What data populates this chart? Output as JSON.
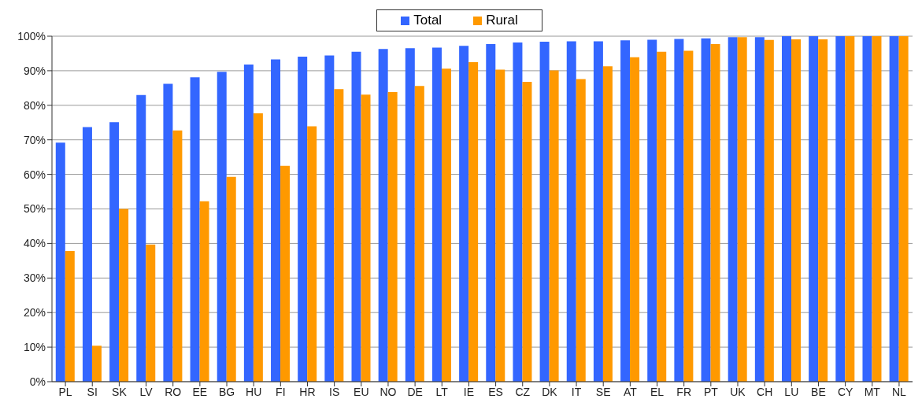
{
  "chart_data": {
    "type": "bar",
    "categories": [
      "PL",
      "SI",
      "SK",
      "LV",
      "RO",
      "EE",
      "BG",
      "HU",
      "FI",
      "HR",
      "IS",
      "EU",
      "NO",
      "DE",
      "LT",
      "IE",
      "ES",
      "CZ",
      "DK",
      "IT",
      "SE",
      "AT",
      "EL",
      "FR",
      "PT",
      "UK",
      "CH",
      "LU",
      "BE",
      "CY",
      "MT",
      "NL"
    ],
    "series": [
      {
        "name": "Total",
        "color": "#3366ff",
        "values": [
          69.2,
          73.7,
          75.1,
          83,
          86.2,
          88.1,
          89.7,
          91.8,
          93.3,
          94.1,
          94.4,
          95.5,
          96.3,
          96.5,
          96.7,
          97.2,
          97.7,
          98.2,
          98.4,
          98.5,
          98.5,
          98.8,
          99.0,
          99.2,
          99.4,
          99.7,
          99.7,
          100,
          100,
          100,
          100,
          100
        ]
      },
      {
        "name": "Rural",
        "color": "#ff9900",
        "values": [
          37.8,
          10.4,
          50,
          39.7,
          72.7,
          52.2,
          59.3,
          77.7,
          62.5,
          73.9,
          84.7,
          83.1,
          83.8,
          85.6,
          90.6,
          92.5,
          90.3,
          86.8,
          90.1,
          87.6,
          91.3,
          93.9,
          95.5,
          95.8,
          97.7,
          99.7,
          98.9,
          99.1,
          99.1,
          100,
          100,
          100
        ]
      }
    ],
    "ylim": [
      0,
      100
    ],
    "yticks": [
      {
        "value": 0,
        "label": "0%"
      },
      {
        "value": 10,
        "label": "10%"
      },
      {
        "value": 20,
        "label": "20%"
      },
      {
        "value": 30,
        "label": "30%"
      },
      {
        "value": 40,
        "label": "40%"
      },
      {
        "value": 50,
        "label": "50%"
      },
      {
        "value": 60,
        "label": "60%"
      },
      {
        "value": 70,
        "label": "70%"
      },
      {
        "value": 80,
        "label": "80%"
      },
      {
        "value": 90,
        "label": "90%"
      },
      {
        "value": 100,
        "label": "100%"
      }
    ],
    "grid": "y",
    "legend": "top"
  }
}
